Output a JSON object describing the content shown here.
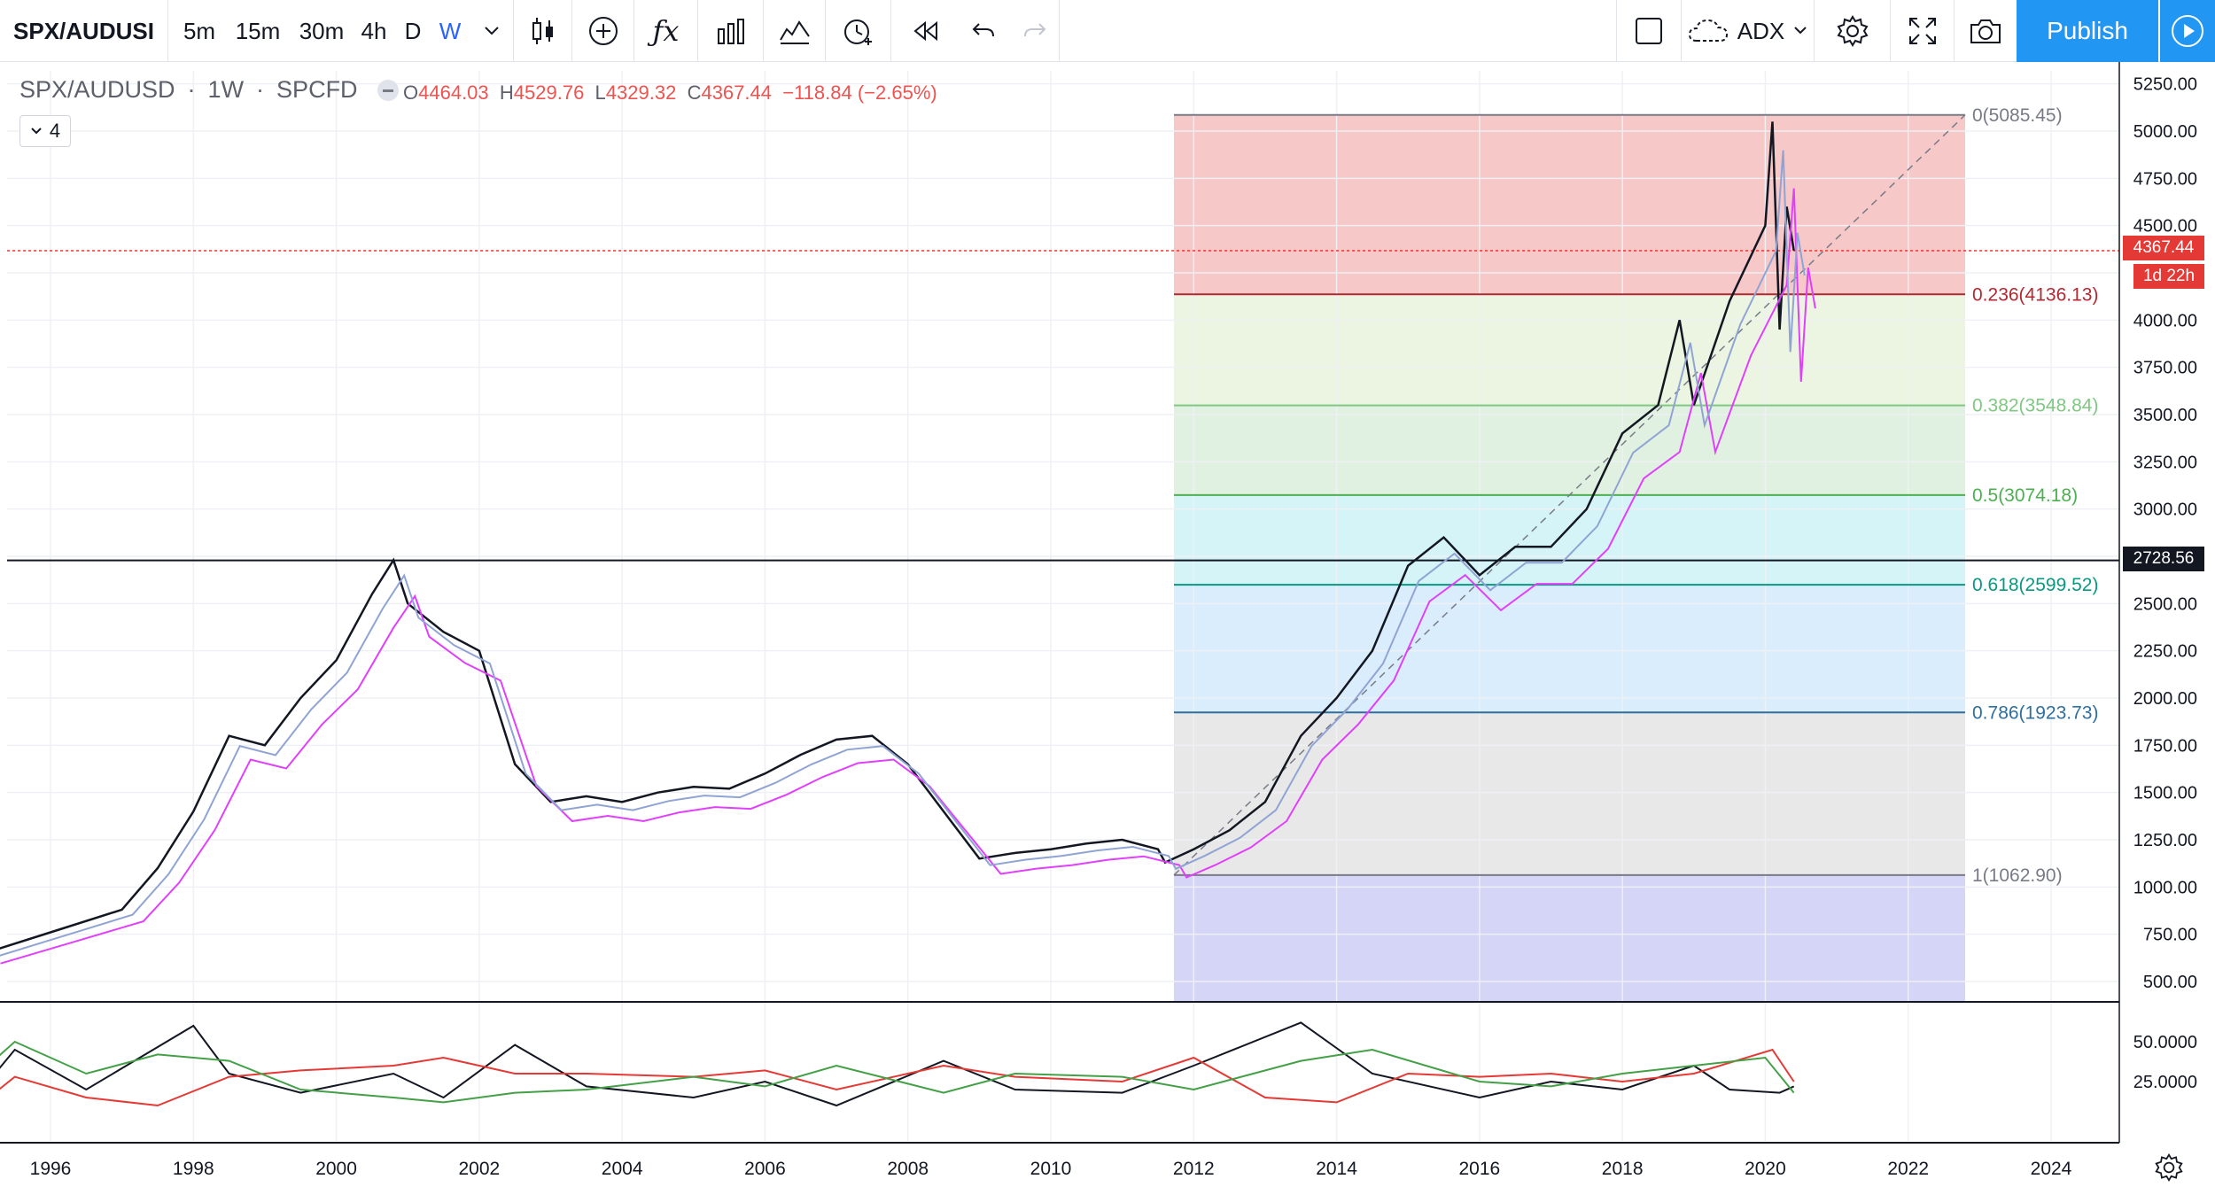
{
  "toolbar": {
    "symbol": "SPX/AUDUSI",
    "intervals": [
      "5m",
      "15m",
      "30m",
      "4h",
      "D",
      "W"
    ],
    "indicator_label": "ADX",
    "publish_label": "Publish"
  },
  "legend": {
    "title": "SPX/AUDUSD",
    "interval": "1W",
    "source": "SPCFD",
    "open_label": "O",
    "open": "4464.03",
    "high_label": "H",
    "high": "4529.76",
    "low_label": "L",
    "low": "4329.32",
    "close_label": "C",
    "close": "4367.44",
    "change": "−118.84 (−2.65%)",
    "indicator_count": "4"
  },
  "price_tags": {
    "last": "4367.44",
    "countdown": "1d 22h",
    "hline": "2728.56"
  },
  "colors": {
    "accent": "#2196f3",
    "down": "#ef5350",
    "up": "#26a69a",
    "ma": "#000000"
  },
  "chart_data": [
    {
      "type": "line",
      "title": "SPX/AUDUSD · 1W · SPCFD",
      "x_ticks": [
        "1996",
        "1998",
        "2000",
        "2002",
        "2004",
        "2006",
        "2008",
        "2010",
        "2012",
        "2014",
        "2016",
        "2018",
        "2020",
        "2022",
        "2024"
      ],
      "y_ticks": [
        "500.00",
        "750.00",
        "1000.00",
        "1250.00",
        "1500.00",
        "1750.00",
        "2000.00",
        "2250.00",
        "2500.00",
        "2750.00",
        "3000.00",
        "3250.00",
        "3500.00",
        "3750.00",
        "4000.00",
        "4250.00",
        "4500.00",
        "4750.00",
        "5000.00",
        "5250.00"
      ],
      "ylim": [
        390,
        5320
      ],
      "xlim": [
        1995.0,
        2025.0
      ],
      "scale": "linear",
      "grid": true,
      "series": [
        {
          "values": [
            [
              1995.0,
              640
            ],
            [
              1996.0,
              760
            ],
            [
              1997.0,
              880
            ],
            [
              1997.5,
              1100
            ],
            [
              1998.0,
              1400
            ],
            [
              1998.5,
              1800
            ],
            [
              1999.0,
              1750
            ],
            [
              1999.5,
              2000
            ],
            [
              2000.0,
              2200
            ],
            [
              2000.5,
              2550
            ],
            [
              2000.8,
              2730
            ],
            [
              2001.0,
              2500
            ],
            [
              2001.5,
              2350
            ],
            [
              2002.0,
              2250
            ],
            [
              2002.5,
              1650
            ],
            [
              2003.0,
              1450
            ],
            [
              2003.5,
              1480
            ],
            [
              2004.0,
              1450
            ],
            [
              2004.5,
              1500
            ],
            [
              2005.0,
              1530
            ],
            [
              2005.5,
              1520
            ],
            [
              2006.0,
              1600
            ],
            [
              2006.5,
              1700
            ],
            [
              2007.0,
              1780
            ],
            [
              2007.5,
              1800
            ],
            [
              2008.0,
              1650
            ],
            [
              2008.5,
              1400
            ],
            [
              2009.0,
              1150
            ],
            [
              2009.5,
              1180
            ],
            [
              2010.0,
              1200
            ],
            [
              2010.5,
              1230
            ],
            [
              2011.0,
              1250
            ],
            [
              2011.5,
              1200
            ],
            [
              2011.6,
              1130
            ],
            [
              2012.0,
              1200
            ],
            [
              2012.5,
              1300
            ],
            [
              2013.0,
              1450
            ],
            [
              2013.5,
              1800
            ],
            [
              2014.0,
              2000
            ],
            [
              2014.5,
              2250
            ],
            [
              2015.0,
              2700
            ],
            [
              2015.5,
              2850
            ],
            [
              2016.0,
              2650
            ],
            [
              2016.5,
              2800
            ],
            [
              2017.0,
              2800
            ],
            [
              2017.5,
              3000
            ],
            [
              2018.0,
              3400
            ],
            [
              2018.5,
              3550
            ],
            [
              2018.8,
              4000
            ],
            [
              2019.0,
              3550
            ],
            [
              2019.5,
              4100
            ],
            [
              2020.0,
              4500
            ],
            [
              2020.1,
              5050
            ],
            [
              2020.2,
              3950
            ],
            [
              2020.3,
              4600
            ],
            [
              2020.4,
              4367.44
            ]
          ]
        }
      ],
      "fibonacci": [
        {
          "label": "0(5085.45)",
          "value": 5085.45,
          "color": "#787b86"
        },
        {
          "label": "0.236(4136.13)",
          "value": 4136.13,
          "color": "#b22833"
        },
        {
          "label": "0.382(3548.84)",
          "value": 3548.84,
          "color": "#81c784"
        },
        {
          "label": "0.5(3074.18)",
          "value": 3074.18,
          "color": "#4caf50"
        },
        {
          "label": "0.618(2599.52)",
          "value": 2599.52,
          "color": "#089981"
        },
        {
          "label": "0.786(1923.73)",
          "value": 1923.73,
          "color": "#2f6f9f"
        },
        {
          "label": "1(1062.90)",
          "value": 1062.9,
          "color": "#787b86"
        }
      ],
      "fib_zones": [
        {
          "from": 5085.45,
          "to": 4136.13,
          "color": "#ef9a9a"
        },
        {
          "from": 4136.13,
          "to": 3548.84,
          "color": "#dcedc8"
        },
        {
          "from": 3548.84,
          "to": 3074.18,
          "color": "#c8e6c9"
        },
        {
          "from": 3074.18,
          "to": 2599.52,
          "color": "#b2ebf2"
        },
        {
          "from": 2599.52,
          "to": 1923.73,
          "color": "#bbdefb"
        },
        {
          "from": 1923.73,
          "to": 1062.9,
          "color": "#d6d6d6"
        },
        {
          "from": 1062.9,
          "to": 390,
          "color": "#b3b3f0"
        }
      ],
      "horizontal_lines": [
        2728.56,
        4367.44
      ]
    },
    {
      "type": "line",
      "title": "",
      "y_ticks": [
        "25.0000",
        "50.0000"
      ],
      "ylim": [
        0,
        70
      ],
      "grid": true,
      "series": [
        {
          "values": [
            [
              1995.0,
              18
            ],
            [
              1995.5,
              45
            ],
            [
              1996.5,
              20
            ],
            [
              1998.0,
              60
            ],
            [
              1998.5,
              30
            ],
            [
              1999.5,
              18
            ],
            [
              2000.8,
              30
            ],
            [
              2001.5,
              15
            ],
            [
              2002.5,
              48
            ],
            [
              2003.5,
              22
            ],
            [
              2005.0,
              15
            ],
            [
              2006.0,
              25
            ],
            [
              2007.0,
              10
            ],
            [
              2008.5,
              38
            ],
            [
              2009.5,
              20
            ],
            [
              2011.0,
              18
            ],
            [
              2012.0,
              35
            ],
            [
              2013.5,
              62
            ],
            [
              2014.5,
              30
            ],
            [
              2016.0,
              15
            ],
            [
              2017.0,
              25
            ],
            [
              2018.0,
              20
            ],
            [
              2019.0,
              35
            ],
            [
              2019.5,
              20
            ],
            [
              2020.2,
              18
            ],
            [
              2020.4,
              22
            ]
          ]
        },
        {
          "values": [
            [
              1995.0,
              10
            ],
            [
              1995.5,
              28
            ],
            [
              1996.5,
              15
            ],
            [
              1997.5,
              10
            ],
            [
              1998.5,
              28
            ],
            [
              1999.5,
              32
            ],
            [
              2000.8,
              35
            ],
            [
              2001.5,
              40
            ],
            [
              2002.5,
              30
            ],
            [
              2003.5,
              30
            ],
            [
              2005.0,
              28
            ],
            [
              2006.0,
              32
            ],
            [
              2007.0,
              20
            ],
            [
              2008.5,
              35
            ],
            [
              2009.5,
              28
            ],
            [
              2011.0,
              25
            ],
            [
              2012.0,
              40
            ],
            [
              2013.0,
              15
            ],
            [
              2014.0,
              12
            ],
            [
              2015.0,
              30
            ],
            [
              2016.0,
              28
            ],
            [
              2017.0,
              30
            ],
            [
              2018.0,
              25
            ],
            [
              2019.0,
              30
            ],
            [
              2020.1,
              45
            ],
            [
              2020.4,
              25
            ]
          ]
        },
        {
          "values": [
            [
              1995.0,
              30
            ],
            [
              1995.5,
              50
            ],
            [
              1996.5,
              30
            ],
            [
              1997.5,
              42
            ],
            [
              1998.5,
              38
            ],
            [
              1999.5,
              20
            ],
            [
              2000.8,
              15
            ],
            [
              2001.5,
              12
            ],
            [
              2002.5,
              18
            ],
            [
              2003.5,
              20
            ],
            [
              2005.0,
              28
            ],
            [
              2006.0,
              22
            ],
            [
              2007.0,
              35
            ],
            [
              2008.5,
              18
            ],
            [
              2009.5,
              30
            ],
            [
              2011.0,
              28
            ],
            [
              2012.0,
              20
            ],
            [
              2013.5,
              38
            ],
            [
              2014.5,
              45
            ],
            [
              2016.0,
              25
            ],
            [
              2017.0,
              22
            ],
            [
              2018.0,
              30
            ],
            [
              2019.0,
              35
            ],
            [
              2020.0,
              40
            ],
            [
              2020.4,
              18
            ]
          ]
        }
      ]
    }
  ]
}
